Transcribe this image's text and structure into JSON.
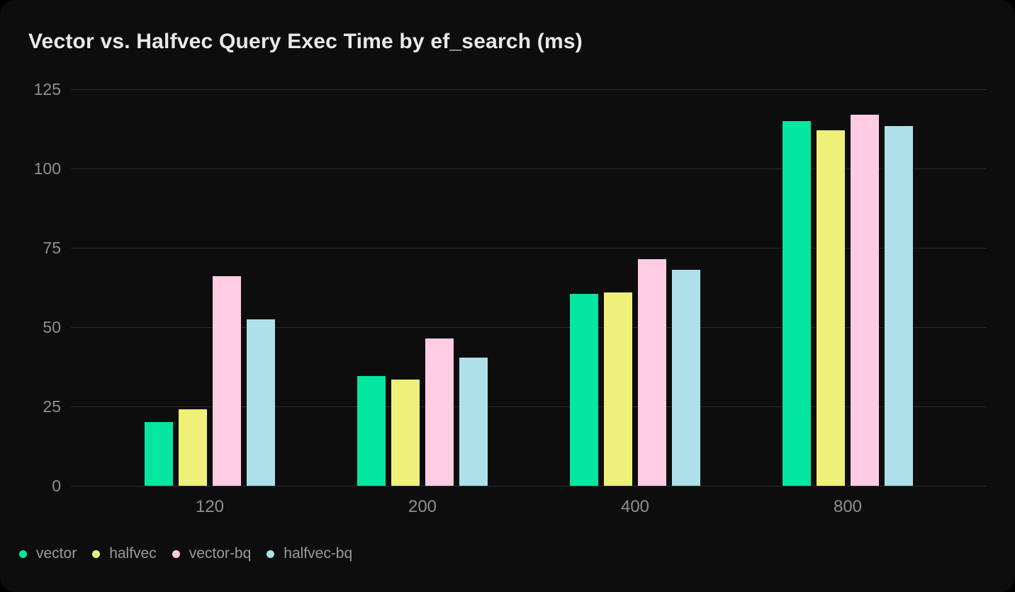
{
  "chart_data": {
    "type": "bar",
    "title": "Vector vs. Halfvec Query Exec Time by ef_search (ms)",
    "categories": [
      "120",
      "200",
      "400",
      "800"
    ],
    "series": [
      {
        "name": "vector",
        "color": "#05e6a0",
        "values": [
          20,
          34.5,
          60.5,
          115
        ]
      },
      {
        "name": "halfvec",
        "color": "#eef07a",
        "values": [
          24,
          33.5,
          61,
          112
        ]
      },
      {
        "name": "vector-bq",
        "color": "#ffcce4",
        "values": [
          66,
          46.5,
          71.5,
          117
        ]
      },
      {
        "name": "halfvec-bq",
        "color": "#ade0e8",
        "values": [
          52.5,
          40.5,
          68,
          113.5
        ]
      }
    ],
    "yticks": [
      0,
      25,
      50,
      75,
      100,
      125
    ],
    "ylim": [
      0,
      125
    ],
    "xlabel": "",
    "ylabel": "",
    "grid": true,
    "legend_position": "bottom-left",
    "background": "#0d0d0e",
    "gridline_color": "#2b2b2d",
    "tick_label_color": "#8f8f92",
    "title_color": "#e9e9e9"
  }
}
